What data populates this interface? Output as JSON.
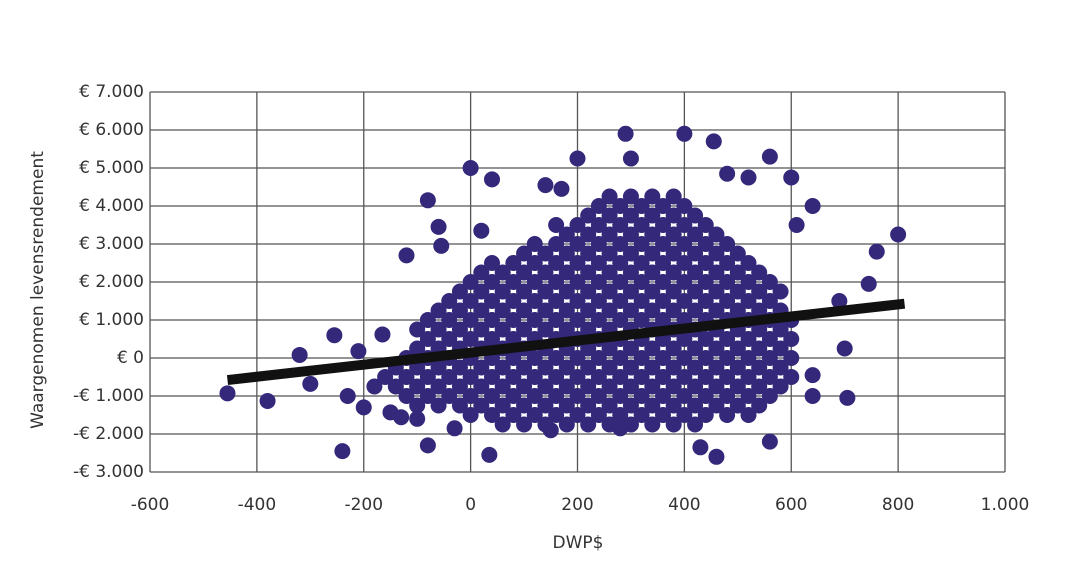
{
  "chart_data": {
    "type": "scatter",
    "xlabel": "DWP$",
    "ylabel": "Waargenomen levensrendement",
    "xlim": [
      -600,
      1000
    ],
    "ylim": [
      -3000,
      7000
    ],
    "xticks": [
      -600,
      -400,
      -200,
      0,
      200,
      400,
      600,
      800,
      {
        "value": 1000,
        "label": "1.000"
      }
    ],
    "yticks": [
      {
        "value": -3000,
        "label": "-€ 3.000"
      },
      {
        "value": -2000,
        "label": "-€ 2.000"
      },
      {
        "value": -1000,
        "label": "-€ 1.000"
      },
      {
        "value": 0,
        "label": "€ 0"
      },
      {
        "value": 1000,
        "label": "€ 1.000"
      },
      {
        "value": 2000,
        "label": "€ 2.000"
      },
      {
        "value": 3000,
        "label": "€ 3.000"
      },
      {
        "value": 4000,
        "label": "€ 4.000"
      },
      {
        "value": 5000,
        "label": "€ 5.000"
      },
      {
        "value": 6000,
        "label": "€ 6.000"
      },
      {
        "value": 7000,
        "label": "€ 7.000"
      }
    ],
    "grid": true,
    "series": [
      {
        "color": "#33287a",
        "x": [
          -455,
          -380,
          -320,
          -300,
          -255,
          -240,
          -230,
          -210,
          -200,
          -165,
          -150,
          -130,
          -120,
          -100,
          -80,
          -80,
          -60,
          -55,
          -30,
          0,
          20,
          35,
          40,
          140,
          150,
          170,
          200,
          280,
          290,
          300,
          400,
          455,
          430,
          460,
          480,
          520,
          560,
          560,
          600,
          610,
          640,
          640,
          640,
          690,
          700,
          705,
          745,
          760,
          800,
          60,
          100,
          140,
          180,
          220,
          260,
          300,
          340,
          380,
          420,
          0,
          40,
          80,
          120,
          160,
          200,
          240,
          280,
          320,
          360,
          400,
          440,
          480,
          520,
          -100,
          -60,
          -20,
          20,
          60,
          100,
          140,
          180,
          220,
          260,
          300,
          340,
          380,
          420,
          460,
          500,
          540,
          -120,
          -80,
          -40,
          0,
          40,
          80,
          120,
          160,
          200,
          240,
          280,
          320,
          360,
          400,
          440,
          480,
          520,
          560,
          -180,
          -140,
          -100,
          -60,
          -20,
          20,
          60,
          100,
          140,
          180,
          220,
          260,
          300,
          340,
          380,
          420,
          460,
          500,
          540,
          580,
          -160,
          -120,
          -80,
          -40,
          0,
          40,
          80,
          120,
          160,
          200,
          240,
          280,
          320,
          360,
          400,
          440,
          480,
          520,
          560,
          600,
          -140,
          -100,
          -60,
          -20,
          20,
          60,
          100,
          140,
          180,
          220,
          260,
          300,
          340,
          380,
          420,
          460,
          500,
          540,
          580,
          -120,
          -80,
          -40,
          0,
          40,
          80,
          120,
          160,
          200,
          240,
          280,
          320,
          360,
          400,
          440,
          480,
          520,
          560,
          600,
          -100,
          -60,
          -20,
          20,
          60,
          100,
          140,
          180,
          220,
          260,
          300,
          340,
          380,
          420,
          460,
          500,
          540,
          580,
          -80,
          -40,
          0,
          40,
          80,
          120,
          160,
          200,
          240,
          280,
          320,
          360,
          400,
          440,
          480,
          520,
          560,
          600,
          -100,
          -60,
          -20,
          20,
          60,
          100,
          140,
          180,
          220,
          260,
          300,
          340,
          380,
          420,
          460,
          500,
          540,
          580,
          -80,
          -40,
          0,
          40,
          80,
          120,
          160,
          200,
          240,
          280,
          320,
          360,
          400,
          440,
          480,
          520,
          560,
          600,
          -60,
          -20,
          20,
          60,
          100,
          140,
          180,
          220,
          260,
          300,
          340,
          380,
          420,
          460,
          500,
          540,
          580,
          -40,
          0,
          40,
          80,
          120,
          160,
          200,
          240,
          280,
          320,
          360,
          400,
          440,
          480,
          520,
          560,
          -20,
          20,
          60,
          100,
          140,
          180,
          220,
          260,
          300,
          340,
          380,
          420,
          460,
          500,
          540,
          580,
          0,
          40,
          80,
          120,
          160,
          200,
          240,
          280,
          320,
          360,
          400,
          440,
          480,
          520,
          560,
          20,
          60,
          100,
          140,
          180,
          220,
          260,
          300,
          340,
          380,
          420,
          460,
          500,
          540,
          40,
          80,
          120,
          160,
          200,
          240,
          280,
          320,
          360,
          400,
          440,
          480,
          520,
          100,
          140,
          180,
          220,
          260,
          300,
          340,
          380,
          420,
          460,
          500,
          120,
          160,
          200,
          240,
          280,
          320,
          360,
          400,
          440,
          480,
          180,
          220,
          260,
          300,
          340,
          380,
          420,
          460,
          160,
          200,
          240,
          280,
          320,
          360,
          400,
          440,
          220,
          260,
          300,
          340,
          380,
          420,
          240,
          280,
          320,
          360,
          400,
          260,
          300,
          340,
          380
        ],
        "values": [
          -930,
          -1130,
          80,
          -680,
          600,
          -2450,
          -1000,
          180,
          -1300,
          620,
          -1430,
          -1560,
          2700,
          -1600,
          4150,
          -2300,
          3450,
          2950,
          -1850,
          5000,
          3350,
          -2550,
          4700,
          4550,
          -1900,
          4450,
          5250,
          -1850,
          5900,
          5250,
          5900,
          5700,
          -2350,
          -2600,
          4850,
          4750,
          5300,
          -2200,
          4750,
          3500,
          4000,
          -450,
          -1000,
          1500,
          250,
          -1050,
          1950,
          2800,
          3250,
          -1750,
          -1750,
          -1750,
          -1750,
          -1750,
          -1750,
          -1750,
          -1750,
          -1750,
          -1750,
          -1500,
          -1500,
          -1500,
          -1500,
          -1500,
          -1500,
          -1500,
          -1500,
          -1500,
          -1500,
          -1500,
          -1500,
          -1500,
          -1500,
          -1250,
          -1250,
          -1250,
          -1250,
          -1250,
          -1250,
          -1250,
          -1250,
          -1250,
          -1250,
          -1250,
          -1250,
          -1250,
          -1250,
          -1250,
          -1250,
          -1250,
          -1000,
          -1000,
          -1000,
          -1000,
          -1000,
          -1000,
          -1000,
          -1000,
          -1000,
          -1000,
          -1000,
          -1000,
          -1000,
          -1000,
          -1000,
          -1000,
          -1000,
          -1000,
          -750,
          -750,
          -750,
          -750,
          -750,
          -750,
          -750,
          -750,
          -750,
          -750,
          -750,
          -750,
          -750,
          -750,
          -750,
          -750,
          -750,
          -750,
          -750,
          -750,
          -500,
          -500,
          -500,
          -500,
          -500,
          -500,
          -500,
          -500,
          -500,
          -500,
          -500,
          -500,
          -500,
          -500,
          -500,
          -500,
          -500,
          -500,
          -500,
          -500,
          -250,
          -250,
          -250,
          -250,
          -250,
          -250,
          -250,
          -250,
          -250,
          -250,
          -250,
          -250,
          -250,
          -250,
          -250,
          -250,
          -250,
          -250,
          -250,
          0,
          0,
          0,
          0,
          0,
          0,
          0,
          0,
          0,
          0,
          0,
          0,
          0,
          0,
          0,
          0,
          0,
          0,
          0,
          250,
          250,
          250,
          250,
          250,
          250,
          250,
          250,
          250,
          250,
          250,
          250,
          250,
          250,
          250,
          250,
          250,
          250,
          500,
          500,
          500,
          500,
          500,
          500,
          500,
          500,
          500,
          500,
          500,
          500,
          500,
          500,
          500,
          500,
          500,
          500,
          750,
          750,
          750,
          750,
          750,
          750,
          750,
          750,
          750,
          750,
          750,
          750,
          750,
          750,
          750,
          750,
          750,
          750,
          1000,
          1000,
          1000,
          1000,
          1000,
          1000,
          1000,
          1000,
          1000,
          1000,
          1000,
          1000,
          1000,
          1000,
          1000,
          1000,
          1000,
          1000,
          1250,
          1250,
          1250,
          1250,
          1250,
          1250,
          1250,
          1250,
          1250,
          1250,
          1250,
          1250,
          1250,
          1250,
          1250,
          1250,
          1250,
          1500,
          1500,
          1500,
          1500,
          1500,
          1500,
          1500,
          1500,
          1500,
          1500,
          1500,
          1500,
          1500,
          1500,
          1500,
          1500,
          1750,
          1750,
          1750,
          1750,
          1750,
          1750,
          1750,
          1750,
          1750,
          1750,
          1750,
          1750,
          1750,
          1750,
          1750,
          1750,
          2000,
          2000,
          2000,
          2000,
          2000,
          2000,
          2000,
          2000,
          2000,
          2000,
          2000,
          2000,
          2000,
          2000,
          2000,
          2250,
          2250,
          2250,
          2250,
          2250,
          2250,
          2250,
          2250,
          2250,
          2250,
          2250,
          2250,
          2250,
          2250,
          2500,
          2500,
          2500,
          2500,
          2500,
          2500,
          2500,
          2500,
          2500,
          2500,
          2500,
          2500,
          2500,
          2750,
          2750,
          2750,
          2750,
          2750,
          2750,
          2750,
          2750,
          2750,
          2750,
          2750,
          3000,
          3000,
          3000,
          3000,
          3000,
          3000,
          3000,
          3000,
          3000,
          3000,
          3250,
          3250,
          3250,
          3250,
          3250,
          3250,
          3250,
          3250,
          3500,
          3500,
          3500,
          3500,
          3500,
          3500,
          3500,
          3500,
          3750,
          3750,
          3750,
          3750,
          3750,
          3750,
          4000,
          4000,
          4000,
          4000,
          4000,
          4250,
          4250,
          4250,
          4250
        ]
      }
    ],
    "trendline": {
      "color": "#111111",
      "x": [
        -455,
        812
      ],
      "values": [
        -580,
        1430
      ]
    }
  }
}
